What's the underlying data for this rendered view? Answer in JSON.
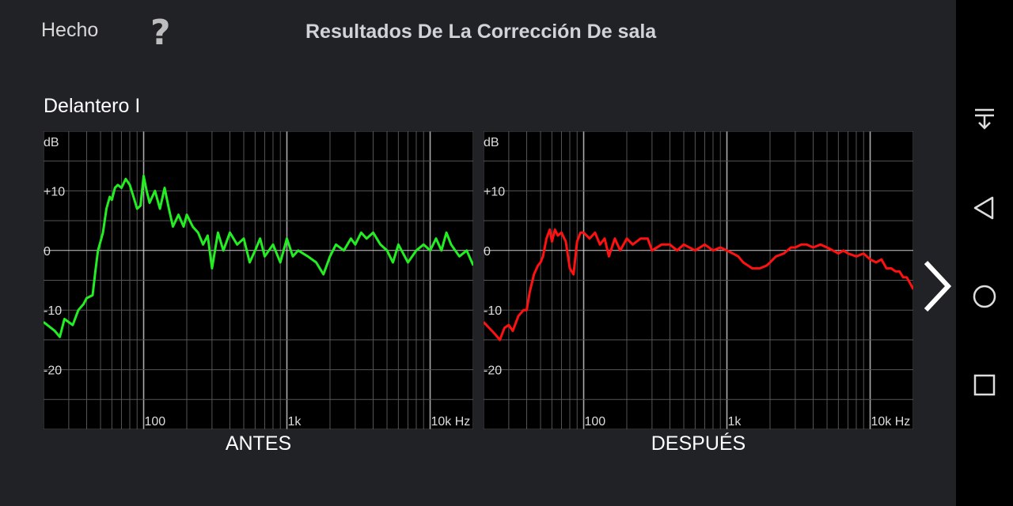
{
  "header": {
    "done_label": "Hecho",
    "help_label": "?",
    "title": "Resultados De La Corrección De sala"
  },
  "channel_name": "Delantero I",
  "graphs": {
    "before_label": "ANTES",
    "after_label": "DESPUÉS",
    "y_axis_unit": "dB",
    "y_ticks": [
      "+10",
      "0",
      "-10",
      "-20"
    ],
    "x_ticks": [
      "100",
      "1k",
      "10k Hz"
    ]
  },
  "navigation": {
    "next_icon": "chevron-right-icon",
    "system_icons": [
      "notification-pull-icon",
      "back-icon",
      "home-icon",
      "recents-icon"
    ]
  },
  "colors": {
    "before_curve": "#22ee22",
    "after_curve": "#ff1111",
    "background": "#202226",
    "graph_background": "#000000",
    "grid": "#777777"
  },
  "chart_data": [
    {
      "type": "line",
      "title": "ANTES",
      "ylabel": "dB",
      "x_scale": "log",
      "xlim": [
        20,
        20000
      ],
      "ylim": [
        -30,
        20
      ],
      "grid": true,
      "series": [
        {
          "x": [
            20,
            24,
            26,
            28,
            32,
            35,
            38,
            40,
            44,
            46,
            48,
            50,
            52,
            55,
            58,
            60,
            63,
            66,
            70,
            75,
            80,
            85,
            90,
            95,
            100,
            105,
            110,
            120,
            130,
            140,
            150,
            160,
            175,
            190,
            200,
            220,
            240,
            260,
            280,
            300,
            330,
            360,
            400,
            450,
            500,
            550,
            600,
            650,
            700,
            800,
            900,
            1000,
            1100,
            1200,
            1400,
            1600,
            1800,
            2000,
            2200,
            2500,
            2800,
            3000,
            3300,
            3600,
            4000,
            4500,
            5000,
            5500,
            6000,
            7000,
            8000,
            9000,
            10000,
            11000,
            12000,
            13000,
            14000,
            16000,
            18000,
            20000
          ],
          "values": [
            -12,
            -13.5,
            -14.5,
            -11.5,
            -12.5,
            -10,
            -9,
            -8,
            -7.5,
            -3.5,
            0,
            1.5,
            3,
            7,
            9,
            8.5,
            10.5,
            11,
            10.5,
            12,
            11,
            9,
            7,
            7.5,
            12.5,
            10,
            8,
            10,
            7,
            10.5,
            7,
            4,
            6,
            4,
            6,
            4,
            3,
            1,
            2.5,
            -3,
            3,
            0,
            3,
            1,
            2,
            -2,
            0,
            2,
            -1,
            1,
            -2,
            2,
            -1,
            0,
            -1,
            -2,
            -4,
            -1,
            1,
            0,
            2,
            1,
            3,
            2,
            3,
            1,
            0,
            -2,
            1,
            -2,
            0,
            1,
            0,
            2,
            0,
            3,
            1,
            -1,
            0,
            -2.5
          ]
        }
      ]
    },
    {
      "type": "line",
      "title": "DESPUÉS",
      "ylabel": "dB",
      "x_scale": "log",
      "xlim": [
        20,
        20000
      ],
      "ylim": [
        -30,
        20
      ],
      "grid": true,
      "series": [
        {
          "x": [
            20,
            24,
            26,
            28,
            30,
            32,
            35,
            38,
            40,
            42,
            45,
            48,
            50,
            52,
            55,
            58,
            60,
            63,
            66,
            70,
            75,
            80,
            85,
            90,
            95,
            100,
            110,
            120,
            130,
            140,
            150,
            165,
            180,
            200,
            220,
            250,
            280,
            300,
            350,
            400,
            450,
            500,
            600,
            700,
            800,
            900,
            1000,
            1100,
            1200,
            1300,
            1500,
            1700,
            1900,
            2000,
            2200,
            2500,
            2800,
            3000,
            3300,
            3600,
            4000,
            4500,
            5000,
            5500,
            6000,
            6500,
            7000,
            8000,
            9000,
            10000,
            11000,
            12000,
            13000,
            14000,
            15000,
            16000,
            17000,
            18000,
            19000,
            20000
          ],
          "values": [
            -12,
            -14,
            -15,
            -13,
            -12.5,
            -13.5,
            -11,
            -10,
            -10,
            -7,
            -4,
            -2.5,
            -2,
            -1,
            2,
            3.5,
            1.5,
            3.5,
            2.5,
            3,
            1.5,
            -3,
            -4,
            1.5,
            3,
            3,
            2,
            3,
            1,
            2,
            -1,
            2,
            0,
            2,
            1,
            2,
            2,
            0,
            1,
            1,
            0,
            1,
            0,
            1,
            0,
            0.5,
            0,
            -0.5,
            -1,
            -2,
            -3,
            -3,
            -2.5,
            -2,
            -1,
            -0.5,
            0.5,
            0.5,
            1,
            1,
            0.5,
            1,
            0.5,
            0,
            -0.5,
            0,
            -0.5,
            -1,
            -0.5,
            -1.5,
            -2,
            -1.5,
            -3,
            -3,
            -3.5,
            -3.5,
            -4.5,
            -4.5,
            -5.5,
            -6.5
          ]
        }
      ]
    }
  ]
}
